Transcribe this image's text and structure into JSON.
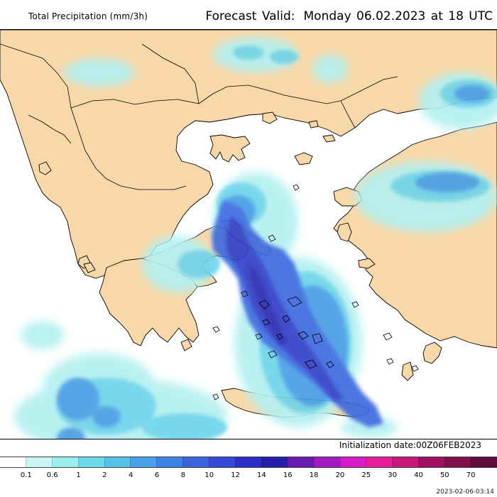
{
  "header": {
    "title_left": "Total Precipitation (mm/3h)",
    "valid_label": "Forecast Valid:",
    "valid_value": "Monday 06.02.2023 at 18 UTC"
  },
  "init_text": "Initialization date:00Z06FEB2023",
  "stamp_text": "2023-02-06-03:14",
  "colors": {
    "sea": "#ffffff",
    "land": "#f8d8a8",
    "border": "#000000"
  },
  "legend": {
    "ticks": [
      "0.1",
      "0.6",
      "1",
      "2",
      "4",
      "6",
      "8",
      "10",
      "12",
      "14",
      "16",
      "18",
      "20",
      "25",
      "30",
      "40",
      "50",
      "70"
    ],
    "colors": [
      "#ffffff",
      "#c8f4f4",
      "#9ceeee",
      "#6ed8e8",
      "#5ac0e8",
      "#4aa0e6",
      "#3c84e4",
      "#3a64dc",
      "#3448d6",
      "#2c30c8",
      "#2420a8",
      "#6a1cb0",
      "#a01cc0",
      "#d81cc8",
      "#e81c98",
      "#c8187a",
      "#a01060",
      "#80104c",
      "#600c3c"
    ]
  }
}
